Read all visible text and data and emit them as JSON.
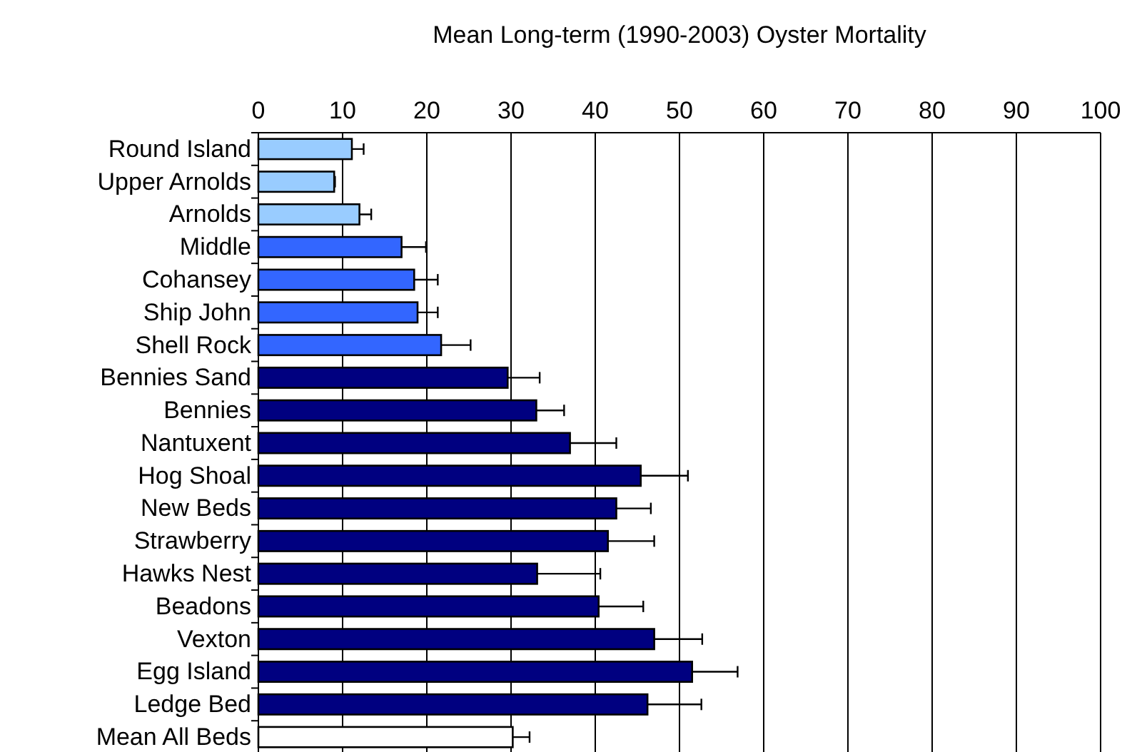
{
  "chart_data": {
    "type": "bar",
    "orientation": "horizontal",
    "xlabel": "Mean Long-term (1990-2003) Oyster Mortality",
    "categories": [
      "Round Island",
      "Upper Arnolds",
      "Arnolds",
      "Middle",
      "Cohansey",
      "Ship John",
      "Shell Rock",
      "Bennies Sand",
      "Bennies",
      "Nantuxent",
      "Hog Shoal",
      "New Beds",
      "Strawberry",
      "Hawks Nest",
      "Beadons",
      "Vexton",
      "Egg Island",
      "Ledge Bed",
      "Mean All Beds"
    ],
    "values": [
      11.1,
      9.0,
      12.0,
      17.0,
      18.5,
      18.9,
      21.7,
      29.6,
      33.0,
      37.0,
      45.4,
      42.5,
      41.5,
      33.1,
      40.4,
      47.0,
      51.5,
      46.2,
      30.2
    ],
    "errors": [
      1.4,
      0.1,
      1.4,
      2.9,
      2.8,
      2.4,
      3.5,
      3.8,
      3.3,
      5.5,
      5.6,
      4.1,
      5.5,
      7.5,
      5.3,
      5.7,
      5.4,
      6.4,
      2.0
    ],
    "colors": [
      "#99ccff",
      "#99ccff",
      "#99ccff",
      "#3366ff",
      "#3366ff",
      "#3366ff",
      "#3366ff",
      "#000080",
      "#000080",
      "#000080",
      "#000080",
      "#000080",
      "#000080",
      "#000080",
      "#000080",
      "#000080",
      "#000080",
      "#000080",
      "#ffffff"
    ],
    "xlim": [
      0,
      100
    ],
    "xticks": [
      0,
      10,
      20,
      30,
      40,
      50,
      60,
      70,
      80,
      90,
      100
    ],
    "grid": "x"
  }
}
